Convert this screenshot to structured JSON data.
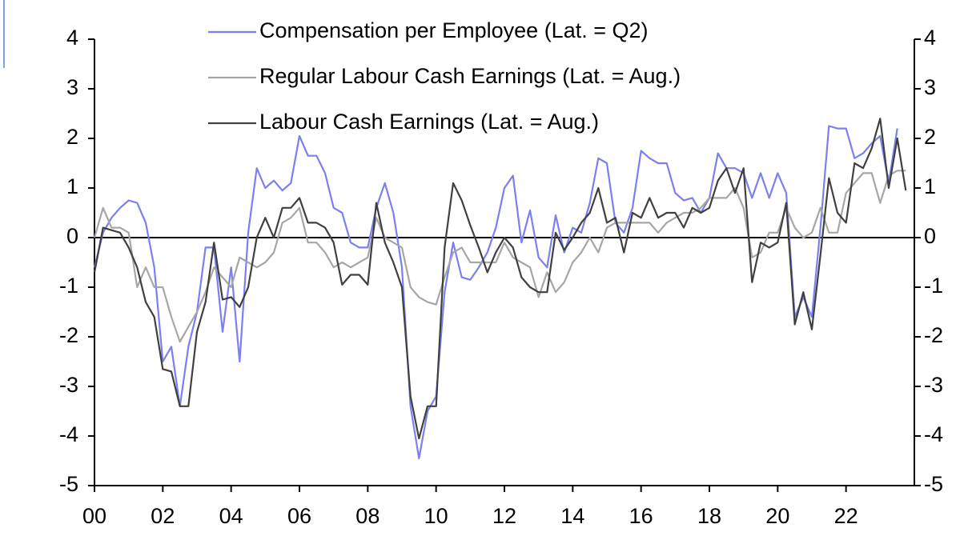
{
  "chart_data": {
    "type": "line",
    "x": [
      2000,
      2000.25,
      2000.5,
      2000.75,
      2001,
      2001.25,
      2001.5,
      2001.75,
      2002,
      2002.25,
      2002.5,
      2002.75,
      2003,
      2003.25,
      2003.5,
      2003.75,
      2004,
      2004.25,
      2004.5,
      2004.75,
      2005,
      2005.25,
      2005.5,
      2005.75,
      2006,
      2006.25,
      2006.5,
      2006.75,
      2007,
      2007.25,
      2007.5,
      2007.75,
      2008,
      2008.25,
      2008.5,
      2008.75,
      2009,
      2009.25,
      2009.5,
      2009.75,
      2010,
      2010.25,
      2010.5,
      2010.75,
      2011,
      2011.25,
      2011.5,
      2011.75,
      2012,
      2012.25,
      2012.5,
      2012.75,
      2013,
      2013.25,
      2013.5,
      2013.75,
      2014,
      2014.25,
      2014.5,
      2014.75,
      2015,
      2015.25,
      2015.5,
      2015.75,
      2016,
      2016.25,
      2016.5,
      2016.75,
      2017,
      2017.25,
      2017.5,
      2017.75,
      2018,
      2018.25,
      2018.5,
      2018.75,
      2019,
      2019.25,
      2019.5,
      2019.75,
      2020,
      2020.25,
      2020.5,
      2020.75,
      2021,
      2021.25,
      2021.5,
      2021.75,
      2022,
      2022.25,
      2022.5,
      2022.75,
      2023,
      2023.25,
      2023.5,
      2023.75
    ],
    "series": [
      {
        "name": "Compensation per Employee (Lat. = Q2)",
        "color": "#7b7ff0",
        "values": [
          -0.6,
          0.1,
          0.4,
          0.6,
          0.75,
          0.7,
          0.3,
          -0.6,
          -2.5,
          -2.2,
          -3.4,
          -2.2,
          -1.5,
          -0.2,
          -0.2,
          -1.9,
          -0.6,
          -2.5,
          0.1,
          1.4,
          1.0,
          1.15,
          0.95,
          1.1,
          2.05,
          1.65,
          1.65,
          1.3,
          0.6,
          0.5,
          -0.1,
          -0.2,
          -0.2,
          0.6,
          1.1,
          0.5,
          -0.6,
          -3.4,
          -4.45,
          -3.5,
          -3.2,
          -1.1,
          -0.1,
          -0.8,
          -0.85,
          -0.6,
          -0.3,
          0.2,
          1.0,
          1.25,
          -0.1,
          0.55,
          -0.4,
          -0.6,
          0.45,
          -0.3,
          0.2,
          0.1,
          0.7,
          1.6,
          1.5,
          0.3,
          0.1,
          0.6,
          1.75,
          1.6,
          1.5,
          1.5,
          0.9,
          0.75,
          0.8,
          0.5,
          0.8,
          1.7,
          1.4,
          1.4,
          1.3,
          0.8,
          1.3,
          0.8,
          1.3,
          0.9,
          -1.6,
          -1.2,
          -1.6,
          0.2,
          2.25,
          2.2,
          2.2,
          1.6,
          1.7,
          1.9,
          2.05,
          1.1,
          2.2,
          null
        ]
      },
      {
        "name": "Regular Labour Cash Earnings (Lat. = Aug.)",
        "color": "#a6a6a6",
        "values": [
          0.0,
          0.6,
          0.2,
          0.2,
          0.1,
          -1.0,
          -0.6,
          -1.0,
          -1.0,
          -1.6,
          -2.1,
          -1.8,
          -1.5,
          -1.1,
          -0.6,
          -0.8,
          -1.0,
          -0.4,
          -0.5,
          -0.6,
          -0.5,
          -0.3,
          0.3,
          0.4,
          0.6,
          -0.1,
          -0.1,
          -0.3,
          -0.6,
          -0.5,
          -0.6,
          -0.5,
          -0.4,
          0.4,
          0.0,
          -0.1,
          -0.2,
          -1.0,
          -1.2,
          -1.3,
          -1.35,
          -0.8,
          -0.3,
          -0.2,
          -0.5,
          -0.5,
          -0.5,
          -0.5,
          -0.1,
          -0.4,
          -0.5,
          -0.6,
          -1.2,
          -0.7,
          -1.1,
          -0.9,
          -0.5,
          -0.3,
          0.0,
          -0.3,
          0.2,
          0.3,
          0.3,
          0.3,
          0.3,
          0.3,
          0.1,
          0.3,
          0.4,
          0.5,
          0.5,
          0.6,
          0.8,
          0.8,
          0.8,
          1.0,
          0.6,
          -0.4,
          -0.3,
          0.1,
          0.1,
          0.6,
          0.2,
          0.0,
          0.1,
          0.6,
          0.1,
          0.1,
          0.9,
          1.1,
          1.3,
          1.3,
          0.7,
          1.25,
          1.35,
          1.35
        ]
      },
      {
        "name": "Labour Cash Earnings (Lat. = Aug.)",
        "color": "#404040",
        "values": [
          -0.7,
          0.2,
          0.15,
          0.1,
          -0.2,
          -0.6,
          -1.3,
          -1.6,
          -2.65,
          -2.7,
          -3.4,
          -3.4,
          -1.9,
          -1.3,
          -0.1,
          -1.25,
          -1.2,
          -1.4,
          -1.0,
          0.0,
          0.4,
          0.0,
          0.6,
          0.6,
          0.8,
          0.3,
          0.3,
          0.2,
          -0.1,
          -0.95,
          -0.75,
          -0.75,
          -0.95,
          0.7,
          -0.1,
          -0.5,
          -1.0,
          -3.2,
          -4.05,
          -3.4,
          -3.4,
          -0.2,
          1.1,
          0.75,
          0.25,
          -0.2,
          -0.7,
          -0.3,
          0.0,
          -0.2,
          -0.8,
          -1.0,
          -1.1,
          -1.1,
          0.1,
          -0.25,
          0.0,
          0.3,
          0.5,
          1.0,
          0.3,
          0.4,
          -0.3,
          0.5,
          0.4,
          0.8,
          0.4,
          0.5,
          0.5,
          0.2,
          0.6,
          0.5,
          0.6,
          1.15,
          1.4,
          0.9,
          1.4,
          -0.9,
          -0.1,
          -0.2,
          -0.1,
          0.7,
          -1.75,
          -1.1,
          -1.85,
          -0.35,
          1.2,
          0.5,
          0.3,
          1.5,
          1.4,
          1.8,
          2.4,
          1.0,
          2.0,
          0.95
        ]
      }
    ],
    "xlim": [
      2000,
      2024
    ],
    "xticks": [
      {
        "value": 2000,
        "label": "00"
      },
      {
        "value": 2002,
        "label": "02"
      },
      {
        "value": 2004,
        "label": "04"
      },
      {
        "value": 2006,
        "label": "06"
      },
      {
        "value": 2008,
        "label": "08"
      },
      {
        "value": 2010,
        "label": "10"
      },
      {
        "value": 2012,
        "label": "12"
      },
      {
        "value": 2014,
        "label": "14"
      },
      {
        "value": 2016,
        "label": "16"
      },
      {
        "value": 2018,
        "label": "18"
      },
      {
        "value": 2020,
        "label": "20"
      },
      {
        "value": 2022,
        "label": "22"
      }
    ],
    "ylim": [
      -5,
      4
    ],
    "yticks": [
      -5,
      -4,
      -3,
      -2,
      -1,
      0,
      1,
      2,
      3,
      4
    ],
    "y2lim": [
      -5,
      4
    ],
    "y2ticks": [
      -5,
      -4,
      -3,
      -2,
      -1,
      0,
      1,
      2,
      3,
      4
    ]
  }
}
